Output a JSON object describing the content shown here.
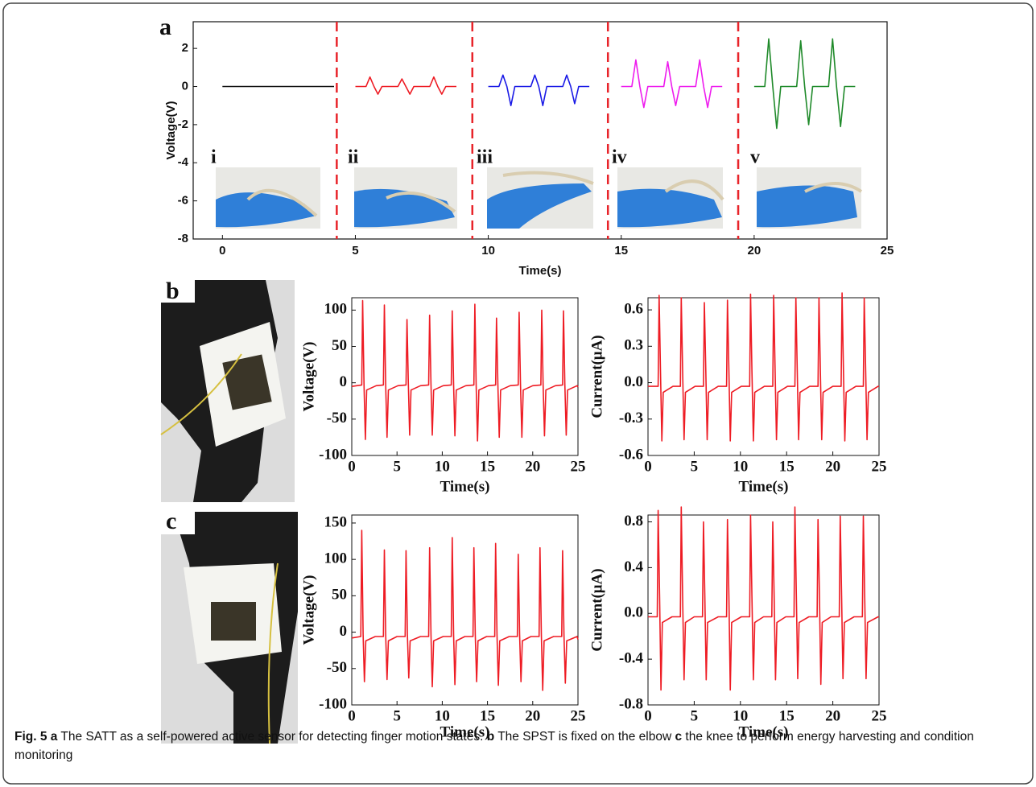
{
  "panel_labels": [
    "a",
    "b",
    "c"
  ],
  "caption": [
    {
      "bold": true,
      "text": "Fig. 5 a"
    },
    {
      "bold": false,
      "text": " The SATT as a self-powered active sensor for detecting finger motion states. "
    },
    {
      "bold": true,
      "text": "b"
    },
    {
      "bold": false,
      "text": " The SPST is fixed on the elbow "
    },
    {
      "bold": true,
      "text": "c"
    },
    {
      "bold": false,
      "text": " the knee to perform energy harvesting and condition monitoring"
    }
  ],
  "chart_data": [
    {
      "type": "line",
      "xlabel": "Time(s)",
      "ylabel": "Voltage(V)",
      "xlim": [
        -1.1,
        25
      ],
      "ylim": [
        -8,
        3.4
      ],
      "xticks": [
        0,
        5,
        10,
        15,
        20,
        25
      ],
      "yticks": [
        2,
        0,
        -2,
        -4,
        -6,
        -8
      ],
      "dividers": [
        4.3,
        9.4,
        14.5,
        19.4
      ],
      "divider_color": "#e8242a",
      "annotations": [
        "i",
        "ii",
        "iii",
        "iv",
        "v"
      ],
      "series": [
        {
          "color": "#111111",
          "x": [
            0,
            4.2
          ],
          "values": [
            0,
            0
          ]
        },
        {
          "color": "#ee1c24",
          "x": [
            5,
            5.4,
            5.55,
            5.7,
            5.85,
            6.0,
            6.6,
            6.75,
            6.9,
            7.05,
            7.2,
            7.8,
            7.95,
            8.1,
            8.25,
            8.4,
            8.8
          ],
          "values": [
            0,
            0,
            0.5,
            0,
            -0.4,
            0,
            0,
            0.4,
            0,
            -0.4,
            0,
            0,
            0.5,
            0,
            -0.4,
            0,
            0
          ]
        },
        {
          "color": "#1a1ae6",
          "x": [
            10,
            10.4,
            10.55,
            10.7,
            10.85,
            11.0,
            11.6,
            11.75,
            11.9,
            12.05,
            12.2,
            12.8,
            12.95,
            13.1,
            13.25,
            13.4,
            13.8
          ],
          "values": [
            0,
            0,
            0.6,
            0,
            -1.0,
            0,
            0,
            0.6,
            0,
            -1.0,
            0,
            0,
            0.6,
            0,
            -0.9,
            0,
            0
          ]
        },
        {
          "color": "#ee1cee",
          "x": [
            15,
            15.4,
            15.55,
            15.7,
            15.85,
            16.0,
            16.6,
            16.75,
            16.9,
            17.05,
            17.2,
            17.8,
            17.95,
            18.1,
            18.25,
            18.4,
            18.8
          ],
          "values": [
            0,
            0,
            1.4,
            0,
            -1.1,
            0,
            0,
            1.3,
            0,
            -1.0,
            0,
            0,
            1.4,
            0,
            -1.1,
            0,
            0
          ]
        },
        {
          "color": "#1f8a2a",
          "x": [
            20,
            20.4,
            20.55,
            20.7,
            20.85,
            21.0,
            21.6,
            21.75,
            21.9,
            22.05,
            22.2,
            22.8,
            22.95,
            23.1,
            23.25,
            23.4,
            23.8
          ],
          "values": [
            0,
            0,
            2.5,
            0,
            -2.2,
            0,
            0,
            2.4,
            0,
            -2.0,
            0,
            0,
            2.5,
            0,
            -2.1,
            0,
            0
          ]
        }
      ]
    },
    {
      "type": "line",
      "xlabel": "Time(s)",
      "ylabel": "Voltage(V)",
      "color": "#ee1c24",
      "xlim": [
        0,
        25
      ],
      "ylim": [
        -100,
        117
      ],
      "xticks": [
        0,
        5,
        10,
        15,
        20,
        25
      ],
      "yticks": [
        100,
        50,
        0,
        -50,
        -100
      ],
      "x": [
        0,
        1.1,
        1.2,
        1.35,
        1.5,
        1.65,
        2.7,
        3.5,
        3.6,
        3.75,
        3.9,
        4.05,
        5.1,
        6.0,
        6.1,
        6.25,
        6.4,
        6.55,
        7.6,
        8.5,
        8.6,
        8.75,
        8.9,
        9.05,
        10.1,
        11.0,
        11.1,
        11.25,
        11.4,
        11.55,
        12.6,
        13.5,
        13.6,
        13.75,
        13.9,
        14.05,
        15.1,
        15.9,
        16.0,
        16.15,
        16.3,
        16.45,
        17.5,
        18.4,
        18.5,
        18.65,
        18.8,
        18.95,
        20.0,
        20.9,
        21.0,
        21.15,
        21.3,
        21.45,
        22.5,
        23.3,
        23.4,
        23.55,
        23.7,
        23.85,
        24.9,
        25
      ],
      "values": [
        -5,
        -3,
        113,
        -2,
        -78,
        -10,
        -4,
        -3,
        107,
        -2,
        -75,
        -10,
        -4,
        -3,
        87,
        -2,
        -72,
        -10,
        -4,
        -3,
        93,
        -2,
        -72,
        -10,
        -4,
        -3,
        99,
        -2,
        -73,
        -10,
        -4,
        -3,
        108,
        -2,
        -80,
        -10,
        -4,
        -3,
        89,
        -2,
        -75,
        -10,
        -4,
        -3,
        97,
        -2,
        -75,
        -10,
        -4,
        -3,
        100,
        -2,
        -73,
        -10,
        -4,
        -3,
        99,
        -2,
        -72,
        -10,
        -4,
        -6
      ]
    },
    {
      "type": "line",
      "xlabel": "Time(s)",
      "ylabel": "Current(μA)",
      "color": "#ee1c24",
      "xlim": [
        0,
        25
      ],
      "ylim": [
        -0.6,
        0.7
      ],
      "xticks": [
        0,
        5,
        10,
        15,
        20,
        25
      ],
      "yticks": [
        0.6,
        0.3,
        {
          "value": 0,
          "label": "0.0"
        },
        -0.3,
        -0.6
      ],
      "x": [
        0,
        1.1,
        1.2,
        1.35,
        1.5,
        1.65,
        2.7,
        3.5,
        3.6,
        3.75,
        3.9,
        4.05,
        5.1,
        6.0,
        6.1,
        6.25,
        6.4,
        6.55,
        7.6,
        8.5,
        8.6,
        8.75,
        8.9,
        9.05,
        10.1,
        11.0,
        11.1,
        11.25,
        11.4,
        11.55,
        12.6,
        13.5,
        13.6,
        13.75,
        13.9,
        14.05,
        15.1,
        15.9,
        16.0,
        16.15,
        16.3,
        16.45,
        17.5,
        18.4,
        18.5,
        18.65,
        18.8,
        18.95,
        20.0,
        20.9,
        21.0,
        21.15,
        21.3,
        21.45,
        22.5,
        23.3,
        23.4,
        23.55,
        23.7,
        23.85,
        24.9,
        25
      ],
      "values": [
        -0.03,
        -0.03,
        0.72,
        0.1,
        -0.48,
        -0.08,
        -0.03,
        -0.03,
        0.7,
        0.1,
        -0.47,
        -0.08,
        -0.03,
        -0.03,
        0.66,
        0.1,
        -0.47,
        -0.08,
        -0.03,
        -0.03,
        0.68,
        0.1,
        -0.48,
        -0.08,
        -0.03,
        -0.03,
        0.73,
        0.1,
        -0.48,
        -0.08,
        -0.03,
        -0.03,
        0.72,
        0.1,
        -0.47,
        -0.08,
        -0.03,
        -0.03,
        0.7,
        0.1,
        -0.47,
        -0.08,
        -0.03,
        -0.03,
        0.7,
        0.1,
        -0.47,
        -0.08,
        -0.03,
        -0.03,
        0.74,
        0.1,
        -0.48,
        -0.08,
        -0.03,
        -0.03,
        0.7,
        0.1,
        -0.47,
        -0.08,
        -0.03,
        -0.03
      ]
    },
    {
      "type": "line",
      "xlabel": "Time(s)",
      "ylabel": "Voltage(V)",
      "color": "#ee1c24",
      "xlim": [
        0,
        25
      ],
      "ylim": [
        -100,
        161
      ],
      "xticks": [
        0,
        5,
        10,
        15,
        20,
        25
      ],
      "yticks": [
        150,
        100,
        50,
        0,
        -50,
        -100
      ],
      "x": [
        0,
        1.0,
        1.1,
        1.25,
        1.4,
        1.55,
        2.6,
        3.5,
        3.6,
        3.75,
        3.9,
        4.05,
        5.0,
        5.9,
        6.0,
        6.15,
        6.3,
        6.45,
        7.6,
        8.5,
        8.6,
        8.75,
        8.9,
        9.05,
        10.1,
        11.0,
        11.1,
        11.25,
        11.4,
        11.55,
        12.5,
        13.4,
        13.5,
        13.65,
        13.8,
        13.95,
        14.9,
        15.8,
        15.9,
        16.05,
        16.2,
        16.35,
        17.4,
        18.3,
        18.4,
        18.55,
        18.7,
        18.85,
        19.8,
        20.7,
        20.8,
        20.95,
        21.1,
        21.25,
        22.3,
        23.2,
        23.3,
        23.45,
        23.6,
        23.75,
        24.9,
        25
      ],
      "values": [
        -8,
        -6,
        140,
        -3,
        -68,
        -12,
        -6,
        -6,
        113,
        -3,
        -65,
        -12,
        -6,
        -6,
        112,
        -3,
        -63,
        -12,
        -6,
        -6,
        116,
        -3,
        -75,
        -12,
        -6,
        -6,
        130,
        -3,
        -72,
        -12,
        -6,
        -6,
        116,
        -3,
        -68,
        -12,
        -6,
        -6,
        122,
        -3,
        -73,
        -12,
        -6,
        -6,
        107,
        -3,
        -68,
        -12,
        -6,
        -6,
        116,
        -3,
        -80,
        -12,
        -6,
        -6,
        112,
        -3,
        -70,
        -12,
        -6,
        -10
      ]
    },
    {
      "type": "line",
      "xlabel": "Time(s)",
      "ylabel": "Current(μA)",
      "color": "#ee1c24",
      "xlim": [
        0,
        25
      ],
      "ylim": [
        -0.8,
        0.86
      ],
      "xticks": [
        0,
        5,
        10,
        15,
        20,
        25
      ],
      "yticks": [
        0.8,
        0.4,
        {
          "value": 0,
          "label": "0.0"
        },
        -0.4,
        -0.8
      ],
      "x": [
        0,
        1.0,
        1.1,
        1.25,
        1.4,
        1.55,
        2.6,
        3.5,
        3.6,
        3.75,
        3.9,
        4.05,
        5.0,
        5.9,
        6.0,
        6.15,
        6.3,
        6.45,
        7.6,
        8.5,
        8.6,
        8.75,
        8.9,
        9.05,
        10.1,
        11.0,
        11.1,
        11.25,
        11.4,
        11.55,
        12.5,
        13.4,
        13.5,
        13.65,
        13.8,
        13.95,
        14.9,
        15.8,
        15.9,
        16.05,
        16.2,
        16.35,
        17.4,
        18.3,
        18.4,
        18.55,
        18.7,
        18.85,
        19.8,
        20.7,
        20.8,
        20.95,
        21.1,
        21.25,
        22.3,
        23.2,
        23.3,
        23.45,
        23.6,
        23.75,
        24.9,
        25
      ],
      "values": [
        -0.03,
        -0.03,
        0.9,
        0.15,
        -0.67,
        -0.08,
        -0.03,
        -0.03,
        0.93,
        0.15,
        -0.58,
        -0.08,
        -0.03,
        -0.03,
        0.8,
        0.15,
        -0.58,
        -0.08,
        -0.03,
        -0.03,
        0.82,
        0.15,
        -0.67,
        -0.08,
        -0.03,
        -0.03,
        0.86,
        0.15,
        -0.58,
        -0.08,
        -0.03,
        -0.03,
        0.8,
        0.15,
        -0.58,
        -0.08,
        -0.03,
        -0.03,
        0.93,
        0.15,
        -0.57,
        -0.08,
        -0.03,
        -0.03,
        0.82,
        0.15,
        -0.62,
        -0.08,
        -0.03,
        -0.03,
        0.85,
        0.15,
        -0.57,
        -0.08,
        -0.03,
        -0.03,
        0.85,
        0.15,
        -0.57,
        -0.08,
        -0.03,
        -0.03
      ]
    }
  ]
}
